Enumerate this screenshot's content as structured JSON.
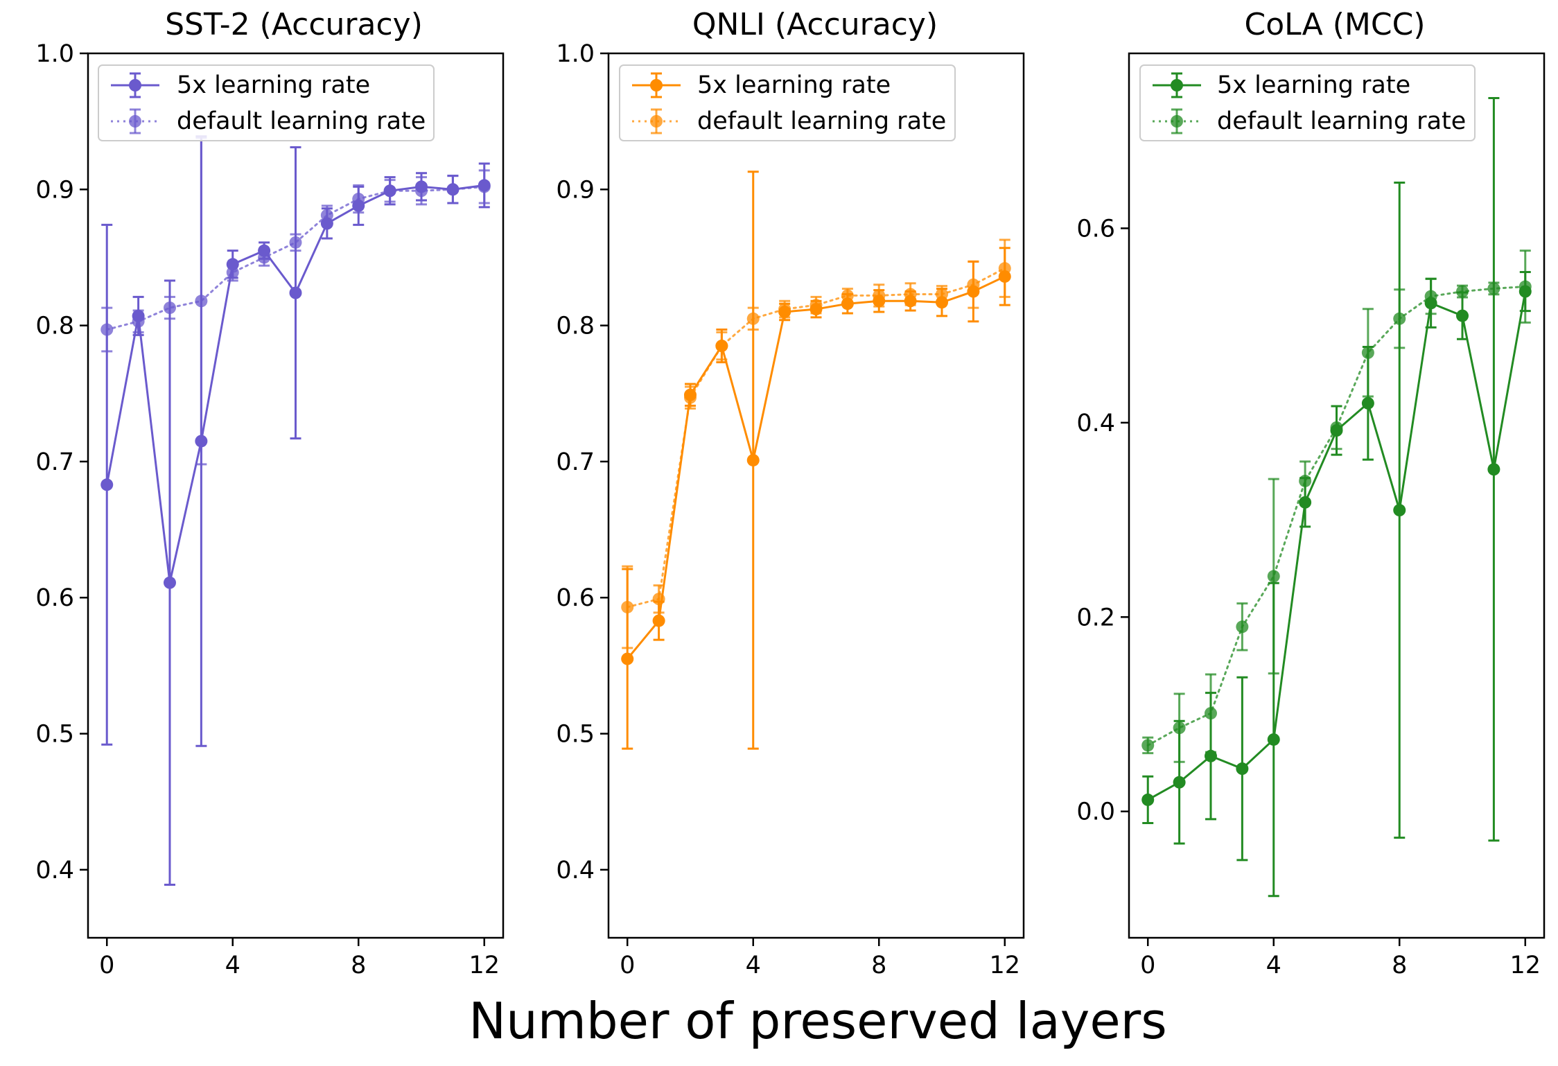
{
  "figure": {
    "xlabel": "Number of preserved layers"
  },
  "chart_data": [
    {
      "type": "line",
      "title": "SST-2 (Accuracy)",
      "xlabel": "",
      "ylabel": "",
      "xlim": [
        -0.6,
        12.6
      ],
      "ylim": [
        0.35,
        1.0
      ],
      "xticks": [
        0,
        4,
        8,
        12
      ],
      "xtick_labels": [
        "0",
        "4",
        "8",
        "12"
      ],
      "yticks": [
        0.4,
        0.5,
        0.6,
        0.7,
        0.8,
        0.9,
        1.0
      ],
      "ytick_labels": [
        "0.4",
        "0.5",
        "0.6",
        "0.7",
        "0.8",
        "0.9",
        "1.0"
      ],
      "color": "#6A5ACD",
      "legend_position": "top-left",
      "x": [
        0,
        1,
        2,
        3,
        4,
        5,
        6,
        7,
        8,
        9,
        10,
        11,
        12
      ],
      "series": [
        {
          "name": "5x learning rate",
          "style": "solid",
          "values": [
            0.683,
            0.807,
            0.611,
            0.715,
            0.845,
            0.855,
            0.824,
            0.875,
            0.888,
            0.899,
            0.902,
            0.9,
            0.903
          ],
          "errors": [
            0.191,
            0.014,
            0.222,
            0.224,
            0.01,
            0.006,
            0.107,
            0.011,
            0.014,
            0.01,
            0.01,
            0.01,
            0.016
          ]
        },
        {
          "name": "default learning rate",
          "style": "dotted",
          "values": [
            0.797,
            0.803,
            0.813,
            0.818,
            0.839,
            0.85,
            0.861,
            0.881,
            0.893,
            0.899,
            0.899,
            0.9,
            0.902
          ],
          "errors": [
            0.016,
            0.008,
            0.008,
            0.12,
            0.006,
            0.006,
            0.006,
            0.007,
            0.01,
            0.008,
            0.01,
            0.01,
            0.012
          ]
        }
      ]
    },
    {
      "type": "line",
      "title": "QNLI (Accuracy)",
      "xlabel": "",
      "ylabel": "",
      "xlim": [
        -0.6,
        12.6
      ],
      "ylim": [
        0.35,
        1.0
      ],
      "xticks": [
        0,
        4,
        8,
        12
      ],
      "xtick_labels": [
        "0",
        "4",
        "8",
        "12"
      ],
      "yticks": [
        0.4,
        0.5,
        0.6,
        0.7,
        0.8,
        0.9,
        1.0
      ],
      "ytick_labels": [
        "0.4",
        "0.5",
        "0.6",
        "0.7",
        "0.8",
        "0.9",
        "1.0"
      ],
      "color": "#FF8C00",
      "legend_position": "top-left",
      "x": [
        0,
        1,
        2,
        3,
        4,
        5,
        6,
        7,
        8,
        9,
        10,
        11,
        12
      ],
      "series": [
        {
          "name": "5x learning rate",
          "style": "solid",
          "values": [
            0.555,
            0.583,
            0.749,
            0.785,
            0.701,
            0.81,
            0.812,
            0.816,
            0.818,
            0.818,
            0.817,
            0.825,
            0.836
          ],
          "errors": [
            0.066,
            0.014,
            0.008,
            0.012,
            0.212,
            0.006,
            0.006,
            0.007,
            0.008,
            0.007,
            0.01,
            0.022,
            0.021
          ]
        },
        {
          "name": "default learning rate",
          "style": "dotted",
          "values": [
            0.593,
            0.599,
            0.747,
            0.785,
            0.805,
            0.812,
            0.815,
            0.822,
            0.822,
            0.823,
            0.823,
            0.83,
            0.842
          ],
          "errors": [
            0.03,
            0.01,
            0.008,
            0.01,
            0.008,
            0.006,
            0.006,
            0.005,
            0.008,
            0.008,
            0.006,
            0.017,
            0.021
          ]
        }
      ]
    },
    {
      "type": "line",
      "title": "CoLA (MCC)",
      "xlabel": "",
      "ylabel": "",
      "xlim": [
        -0.6,
        12.6
      ],
      "ylim": [
        -0.13,
        0.78
      ],
      "xticks": [
        0,
        4,
        8,
        12
      ],
      "xtick_labels": [
        "0",
        "4",
        "8",
        "12"
      ],
      "yticks": [
        0.0,
        0.2,
        0.4,
        0.6
      ],
      "ytick_labels": [
        "0.0",
        "0.2",
        "0.4",
        "0.6"
      ],
      "color": "#228B22",
      "legend_position": "top-left",
      "x": [
        0,
        1,
        2,
        3,
        4,
        5,
        6,
        7,
        8,
        9,
        10,
        11,
        12
      ],
      "series": [
        {
          "name": "5x learning rate",
          "style": "solid",
          "values": [
            0.012,
            0.03,
            0.057,
            0.044,
            0.074,
            0.318,
            0.392,
            0.42,
            0.31,
            0.523,
            0.51,
            0.352,
            0.535
          ],
          "errors": [
            0.024,
            0.063,
            0.065,
            0.094,
            0.161,
            0.025,
            0.025,
            0.058,
            0.337,
            0.025,
            0.024,
            0.382,
            0.02
          ]
        },
        {
          "name": "default learning rate",
          "style": "dotted",
          "values": [
            0.068,
            0.086,
            0.101,
            0.19,
            0.242,
            0.34,
            0.395,
            0.472,
            0.507,
            0.53,
            0.535,
            0.538,
            0.54
          ],
          "errors": [
            0.008,
            0.035,
            0.04,
            0.024,
            0.1,
            0.02,
            0.022,
            0.045,
            0.03,
            0.018,
            0.006,
            0.006,
            0.037
          ]
        }
      ]
    }
  ]
}
